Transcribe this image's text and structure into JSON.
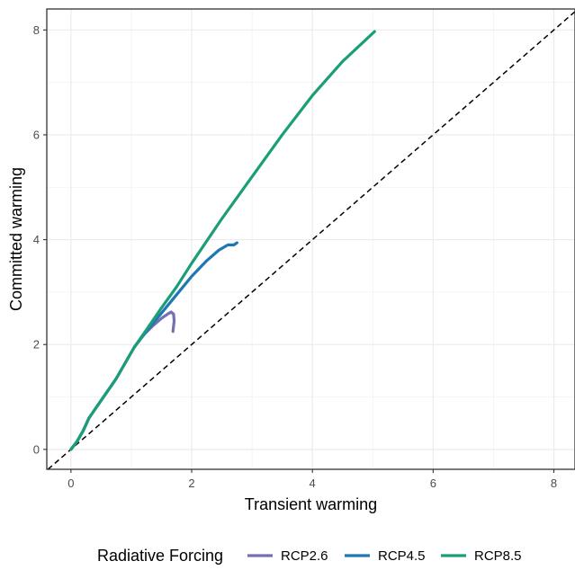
{
  "chart_data": {
    "type": "line",
    "title": "",
    "xlabel": "Transient warming",
    "ylabel": "Committed warming",
    "xlim": [
      -0.4,
      8.35
    ],
    "ylim": [
      -0.38,
      8.4
    ],
    "x_ticks": [
      0,
      2,
      4,
      6,
      8
    ],
    "y_ticks": [
      0,
      2,
      4,
      6,
      8
    ],
    "grid": true,
    "legend": {
      "title": "Radiative Forcing",
      "position": "bottom"
    },
    "reference_line": {
      "slope": 1,
      "intercept": 0,
      "style": "dashed",
      "color": "#000000"
    },
    "series": [
      {
        "name": "RCP2.6",
        "color": "#7570b3",
        "x": [
          0.0,
          0.1,
          0.2,
          0.3,
          0.45,
          0.6,
          0.75,
          0.9,
          1.05,
          1.2,
          1.35,
          1.5,
          1.6,
          1.66,
          1.7,
          1.71,
          1.69
        ],
        "y": [
          0.0,
          0.15,
          0.35,
          0.6,
          0.85,
          1.1,
          1.35,
          1.65,
          1.95,
          2.18,
          2.35,
          2.5,
          2.58,
          2.62,
          2.58,
          2.45,
          2.25
        ]
      },
      {
        "name": "RCP4.5",
        "color": "#1f78b4",
        "x": [
          0.0,
          0.1,
          0.2,
          0.3,
          0.45,
          0.6,
          0.75,
          0.9,
          1.05,
          1.25,
          1.5,
          1.75,
          2.0,
          2.25,
          2.45,
          2.6,
          2.7,
          2.75
        ],
        "y": [
          0.0,
          0.15,
          0.35,
          0.6,
          0.85,
          1.1,
          1.35,
          1.65,
          1.95,
          2.25,
          2.6,
          2.95,
          3.3,
          3.6,
          3.8,
          3.9,
          3.9,
          3.94
        ]
      },
      {
        "name": "RCP8.5",
        "color": "#1b9e77",
        "x": [
          0.0,
          0.1,
          0.2,
          0.3,
          0.45,
          0.6,
          0.75,
          0.9,
          1.05,
          1.25,
          1.5,
          1.75,
          2.0,
          2.5,
          3.0,
          3.5,
          4.0,
          4.5,
          5.03
        ],
        "y": [
          0.0,
          0.15,
          0.35,
          0.6,
          0.85,
          1.1,
          1.35,
          1.65,
          1.95,
          2.28,
          2.7,
          3.1,
          3.55,
          4.4,
          5.2,
          6.0,
          6.75,
          7.4,
          7.97
        ]
      }
    ]
  }
}
